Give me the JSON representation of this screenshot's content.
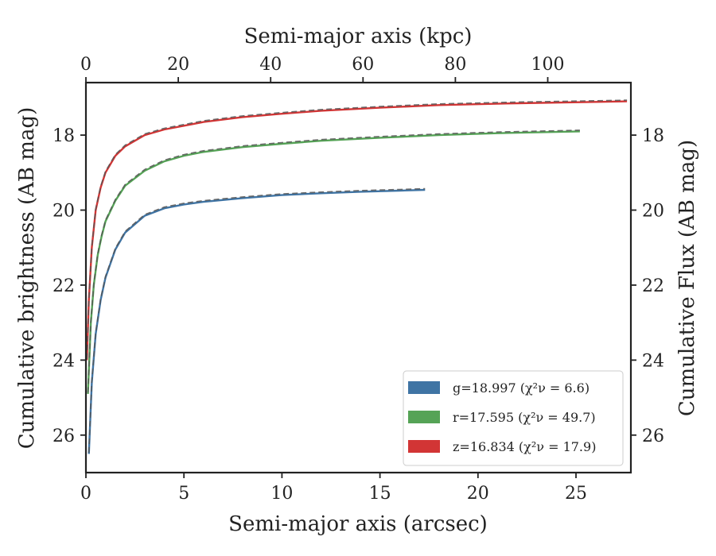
{
  "chart_data": {
    "type": "line",
    "xlabel": "Semi-major axis (arcsec)",
    "x2label": "Semi-major axis (kpc)",
    "ylabel": "Cumulative brightness (AB mag)",
    "y2label": "Cumulative Flux (AB mag)",
    "xlim": [
      0,
      27.8
    ],
    "x2lim": [
      0,
      118
    ],
    "ylim": [
      27.0,
      16.6
    ],
    "y_inverted": true,
    "xticks": [
      0,
      5,
      10,
      15,
      20,
      25
    ],
    "x2ticks": [
      0,
      20,
      40,
      60,
      80,
      100
    ],
    "yticks": [
      18,
      20,
      22,
      24,
      26
    ],
    "grid": false,
    "legend_position": "lower-right",
    "series": [
      {
        "name": "g=18.997 (χ²ν = 6.6)",
        "band": "g",
        "color": "#3f74a4",
        "x": [
          0.15,
          0.3,
          0.5,
          0.75,
          1.0,
          1.5,
          2.0,
          3.0,
          4.0,
          5.0,
          6.0,
          8.0,
          10.0,
          12.0,
          14.0,
          16.0,
          17.3
        ],
        "y": [
          26.5,
          24.6,
          23.3,
          22.4,
          21.8,
          21.05,
          20.6,
          20.15,
          19.95,
          19.85,
          19.78,
          19.68,
          19.6,
          19.55,
          19.51,
          19.48,
          19.46
        ]
      },
      {
        "name": "r=17.595 (χ²ν = 49.7)",
        "band": "r",
        "color": "#55a356",
        "x": [
          0.1,
          0.25,
          0.4,
          0.6,
          0.8,
          1.0,
          1.5,
          2.0,
          3.0,
          4.0,
          5.0,
          6.0,
          8.0,
          10.0,
          12.0,
          15.0,
          18.0,
          21.0,
          25.2
        ],
        "y": [
          24.9,
          23.0,
          22.0,
          21.2,
          20.7,
          20.3,
          19.75,
          19.35,
          18.95,
          18.7,
          18.55,
          18.45,
          18.32,
          18.23,
          18.15,
          18.07,
          18.0,
          17.95,
          17.9
        ]
      },
      {
        "name": "z=16.834 (χ²ν = 17.9)",
        "band": "z",
        "color": "#d23535",
        "x": [
          0.05,
          0.15,
          0.3,
          0.5,
          0.75,
          1.0,
          1.5,
          2.0,
          3.0,
          4.0,
          5.0,
          6.0,
          8.0,
          10.0,
          12.0,
          15.0,
          18.0,
          22.0,
          27.6
        ],
        "y": [
          24.0,
          22.4,
          21.0,
          20.0,
          19.4,
          19.0,
          18.55,
          18.3,
          18.0,
          17.85,
          17.75,
          17.65,
          17.52,
          17.43,
          17.35,
          17.27,
          17.2,
          17.15,
          17.1
        ]
      }
    ]
  }
}
